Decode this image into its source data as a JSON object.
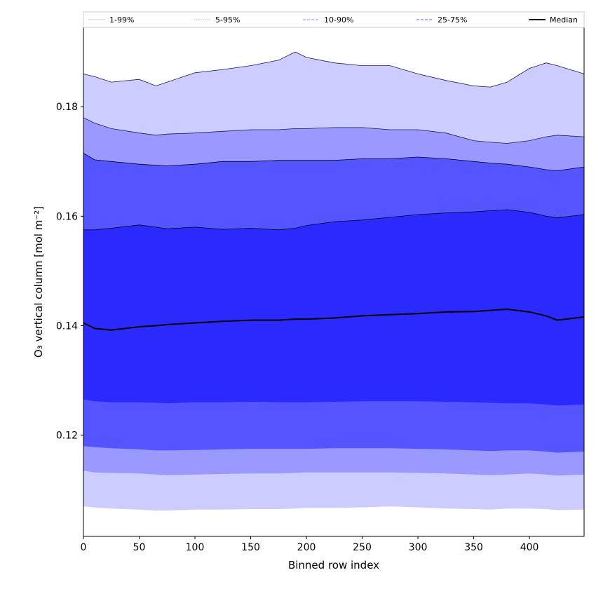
{
  "chart_data": {
    "type": "area",
    "title": "",
    "xlabel": "Binned row index",
    "ylabel": "O₃ vertical column [mol m⁻²]",
    "xlim": [
      0,
      449
    ],
    "ylim": [
      0.1015,
      0.1945
    ],
    "x_ticks": [
      0,
      50,
      100,
      150,
      200,
      250,
      300,
      350,
      400
    ],
    "y_ticks": [
      0.12,
      0.14,
      0.16,
      0.18
    ],
    "grid": false,
    "legend": {
      "placement": "top",
      "entries": [
        {
          "label": "1-99%",
          "color": "#cccccc",
          "style": "solid"
        },
        {
          "label": "5-95%",
          "color": "#aaaaff",
          "style": "dotted"
        },
        {
          "label": "10-90%",
          "color": "#8888ff",
          "style": "dashed"
        },
        {
          "label": "25-75%",
          "color": "#5555ff",
          "style": "dashed"
        },
        {
          "label": "Median",
          "color": "#000000",
          "style": "solid"
        }
      ]
    },
    "x": [
      0,
      10,
      25,
      50,
      65,
      75,
      100,
      125,
      150,
      175,
      190,
      200,
      225,
      250,
      275,
      300,
      325,
      350,
      365,
      380,
      400,
      415,
      425,
      449
    ],
    "series": [
      {
        "name": "1-99%",
        "fill": "#ccccff",
        "lower": [
          0.107,
          0.1068,
          0.1066,
          0.1064,
          0.1062,
          0.1062,
          0.1064,
          0.1064,
          0.1065,
          0.1065,
          0.1066,
          0.1067,
          0.1067,
          0.1068,
          0.107,
          0.1068,
          0.1066,
          0.1065,
          0.1064,
          0.1066,
          0.1066,
          0.1065,
          0.1063,
          0.1064
        ],
        "upper": [
          0.186,
          0.1855,
          0.1845,
          0.185,
          0.1838,
          0.1845,
          0.1862,
          0.1868,
          0.1875,
          0.1885,
          0.19,
          0.189,
          0.188,
          0.1875,
          0.1875,
          0.186,
          0.1848,
          0.1838,
          0.1836,
          0.1845,
          0.187,
          0.188,
          0.1875,
          0.186
        ]
      },
      {
        "name": "5-95%",
        "fill": "#9999ff",
        "lower": [
          0.1135,
          0.1132,
          0.1131,
          0.113,
          0.1128,
          0.1127,
          0.1128,
          0.1129,
          0.113,
          0.113,
          0.1131,
          0.1132,
          0.1132,
          0.1132,
          0.1132,
          0.1131,
          0.113,
          0.1128,
          0.1127,
          0.1128,
          0.113,
          0.1128,
          0.1126,
          0.1128
        ],
        "upper": [
          0.178,
          0.177,
          0.176,
          0.1752,
          0.1748,
          0.175,
          0.1752,
          0.1755,
          0.1758,
          0.1758,
          0.176,
          0.176,
          0.1762,
          0.1762,
          0.1758,
          0.1758,
          0.1752,
          0.1738,
          0.1735,
          0.1733,
          0.1738,
          0.1745,
          0.1748,
          0.1745
        ]
      },
      {
        "name": "10-90%",
        "fill": "#5555ff",
        "lower": [
          0.118,
          0.1178,
          0.1176,
          0.1174,
          0.1172,
          0.1172,
          0.1173,
          0.1174,
          0.1175,
          0.1175,
          0.1175,
          0.1175,
          0.1176,
          0.1176,
          0.1176,
          0.1175,
          0.1174,
          0.1172,
          0.1171,
          0.1172,
          0.1172,
          0.117,
          0.1168,
          0.117
        ],
        "upper": [
          0.1715,
          0.1703,
          0.17,
          0.1695,
          0.1693,
          0.1692,
          0.1695,
          0.17,
          0.17,
          0.1702,
          0.1702,
          0.1702,
          0.1702,
          0.1705,
          0.1705,
          0.1708,
          0.1705,
          0.17,
          0.1697,
          0.1695,
          0.169,
          0.1685,
          0.1683,
          0.169
        ]
      },
      {
        "name": "25-75%",
        "fill": "#2a2aff",
        "lower": [
          0.1265,
          0.1262,
          0.126,
          0.126,
          0.1259,
          0.1258,
          0.126,
          0.126,
          0.1261,
          0.126,
          0.126,
          0.126,
          0.1261,
          0.1262,
          0.1262,
          0.1262,
          0.1261,
          0.126,
          0.1259,
          0.1258,
          0.1258,
          0.1256,
          0.1254,
          0.1256
        ],
        "upper": [
          0.1575,
          0.1575,
          0.1578,
          0.1584,
          0.158,
          0.1577,
          0.158,
          0.1576,
          0.1578,
          0.1575,
          0.1578,
          0.1583,
          0.159,
          0.1593,
          0.1598,
          0.1603,
          0.1606,
          0.1608,
          0.161,
          0.1612,
          0.1607,
          0.16,
          0.1597,
          0.1603
        ]
      },
      {
        "name": "Median",
        "color": "#000000",
        "values": [
          0.1405,
          0.1395,
          0.1392,
          0.1398,
          0.14,
          0.1402,
          0.1405,
          0.1408,
          0.141,
          0.141,
          0.1412,
          0.1412,
          0.1414,
          0.1418,
          0.142,
          0.1422,
          0.1425,
          0.1426,
          0.1428,
          0.143,
          0.1425,
          0.1418,
          0.141,
          0.1416
        ]
      }
    ]
  }
}
